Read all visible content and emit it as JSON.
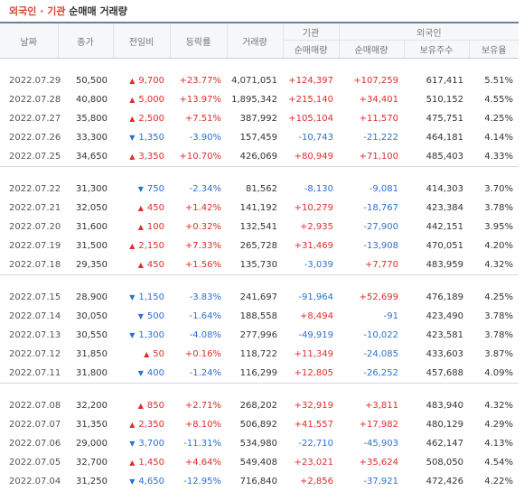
{
  "title": {
    "highlight": "외국인 · 기관",
    "rest": "순매매 거래량"
  },
  "headers": {
    "date": "날짜",
    "close": "종가",
    "change": "전일비",
    "rate": "등락률",
    "volume": "거래량",
    "inst_group": "기관",
    "foreign_group": "외국인",
    "inst_net": "순매매량",
    "foreign_net": "순매매량",
    "foreign_hold": "보유주수",
    "foreign_ratio": "보유율"
  },
  "colors": {
    "up": "#e02c2c",
    "down": "#2f6fd1",
    "accent": "#d4462a"
  },
  "icons": {
    "up": "triangle-up-icon",
    "down": "triangle-down-icon"
  },
  "groups": [
    {
      "rows": [
        {
          "date": "2022.07.29",
          "close": "50,500",
          "dir": "up",
          "change": "9,700",
          "rate": "+23.77%",
          "volume": "4,071,051",
          "inst": "+124,397",
          "foreign": "+107,259",
          "hold": "617,411",
          "ratio": "5.51%"
        },
        {
          "date": "2022.07.28",
          "close": "40,800",
          "dir": "up",
          "change": "5,000",
          "rate": "+13.97%",
          "volume": "1,895,342",
          "inst": "+215,140",
          "foreign": "+34,401",
          "hold": "510,152",
          "ratio": "4.55%"
        },
        {
          "date": "2022.07.27",
          "close": "35,800",
          "dir": "up",
          "change": "2,500",
          "rate": "+7.51%",
          "volume": "387,992",
          "inst": "+105,104",
          "foreign": "+11,570",
          "hold": "475,751",
          "ratio": "4.25%"
        },
        {
          "date": "2022.07.26",
          "close": "33,300",
          "dir": "down",
          "change": "1,350",
          "rate": "-3.90%",
          "volume": "157,459",
          "inst": "-10,743",
          "foreign": "-21,222",
          "hold": "464,181",
          "ratio": "4.14%"
        },
        {
          "date": "2022.07.25",
          "close": "34,650",
          "dir": "up",
          "change": "3,350",
          "rate": "+10.70%",
          "volume": "426,069",
          "inst": "+80,949",
          "foreign": "+71,100",
          "hold": "485,403",
          "ratio": "4.33%"
        }
      ]
    },
    {
      "rows": [
        {
          "date": "2022.07.22",
          "close": "31,300",
          "dir": "down",
          "change": "750",
          "rate": "-2.34%",
          "volume": "81,562",
          "inst": "-8,130",
          "foreign": "-9,081",
          "hold": "414,303",
          "ratio": "3.70%"
        },
        {
          "date": "2022.07.21",
          "close": "32,050",
          "dir": "up",
          "change": "450",
          "rate": "+1.42%",
          "volume": "141,192",
          "inst": "+10,279",
          "foreign": "-18,767",
          "hold": "423,384",
          "ratio": "3.78%"
        },
        {
          "date": "2022.07.20",
          "close": "31,600",
          "dir": "up",
          "change": "100",
          "rate": "+0.32%",
          "volume": "132,541",
          "inst": "+2,935",
          "foreign": "-27,900",
          "hold": "442,151",
          "ratio": "3.95%"
        },
        {
          "date": "2022.07.19",
          "close": "31,500",
          "dir": "up",
          "change": "2,150",
          "rate": "+7.33%",
          "volume": "265,728",
          "inst": "+31,469",
          "foreign": "-13,908",
          "hold": "470,051",
          "ratio": "4.20%"
        },
        {
          "date": "2022.07.18",
          "close": "29,350",
          "dir": "up",
          "change": "450",
          "rate": "+1.56%",
          "volume": "135,730",
          "inst": "-3,039",
          "foreign": "+7,770",
          "hold": "483,959",
          "ratio": "4.32%"
        }
      ]
    },
    {
      "rows": [
        {
          "date": "2022.07.15",
          "close": "28,900",
          "dir": "down",
          "change": "1,150",
          "rate": "-3.83%",
          "volume": "241,697",
          "inst": "-91,964",
          "foreign": "+52,699",
          "hold": "476,189",
          "ratio": "4.25%"
        },
        {
          "date": "2022.07.14",
          "close": "30,050",
          "dir": "down",
          "change": "500",
          "rate": "-1.64%",
          "volume": "188,558",
          "inst": "+8,494",
          "foreign": "-91",
          "hold": "423,490",
          "ratio": "3.78%"
        },
        {
          "date": "2022.07.13",
          "close": "30,550",
          "dir": "down",
          "change": "1,300",
          "rate": "-4.08%",
          "volume": "277,996",
          "inst": "-49,919",
          "foreign": "-10,022",
          "hold": "423,581",
          "ratio": "3.78%"
        },
        {
          "date": "2022.07.12",
          "close": "31,850",
          "dir": "up",
          "change": "50",
          "rate": "+0.16%",
          "volume": "118,722",
          "inst": "+11,349",
          "foreign": "-24,085",
          "hold": "433,603",
          "ratio": "3.87%"
        },
        {
          "date": "2022.07.11",
          "close": "31,800",
          "dir": "down",
          "change": "400",
          "rate": "-1.24%",
          "volume": "116,299",
          "inst": "+12,805",
          "foreign": "-26,252",
          "hold": "457,688",
          "ratio": "4.09%"
        }
      ]
    },
    {
      "rows": [
        {
          "date": "2022.07.08",
          "close": "32,200",
          "dir": "up",
          "change": "850",
          "rate": "+2.71%",
          "volume": "268,202",
          "inst": "+32,919",
          "foreign": "+3,811",
          "hold": "483,940",
          "ratio": "4.32%"
        },
        {
          "date": "2022.07.07",
          "close": "31,350",
          "dir": "up",
          "change": "2,350",
          "rate": "+8.10%",
          "volume": "506,892",
          "inst": "+41,557",
          "foreign": "+17,982",
          "hold": "480,129",
          "ratio": "4.29%"
        },
        {
          "date": "2022.07.06",
          "close": "29,000",
          "dir": "down",
          "change": "3,700",
          "rate": "-11.31%",
          "volume": "534,980",
          "inst": "-22,710",
          "foreign": "-45,903",
          "hold": "462,147",
          "ratio": "4.13%"
        },
        {
          "date": "2022.07.05",
          "close": "32,700",
          "dir": "up",
          "change": "1,450",
          "rate": "+4.64%",
          "volume": "549,408",
          "inst": "+23,021",
          "foreign": "+35,624",
          "hold": "508,050",
          "ratio": "4.54%"
        },
        {
          "date": "2022.07.04",
          "close": "31,250",
          "dir": "down",
          "change": "4,650",
          "rate": "-12.95%",
          "volume": "716,840",
          "inst": "+2,856",
          "foreign": "-37,921",
          "hold": "472,426",
          "ratio": "4.22%"
        }
      ]
    }
  ]
}
